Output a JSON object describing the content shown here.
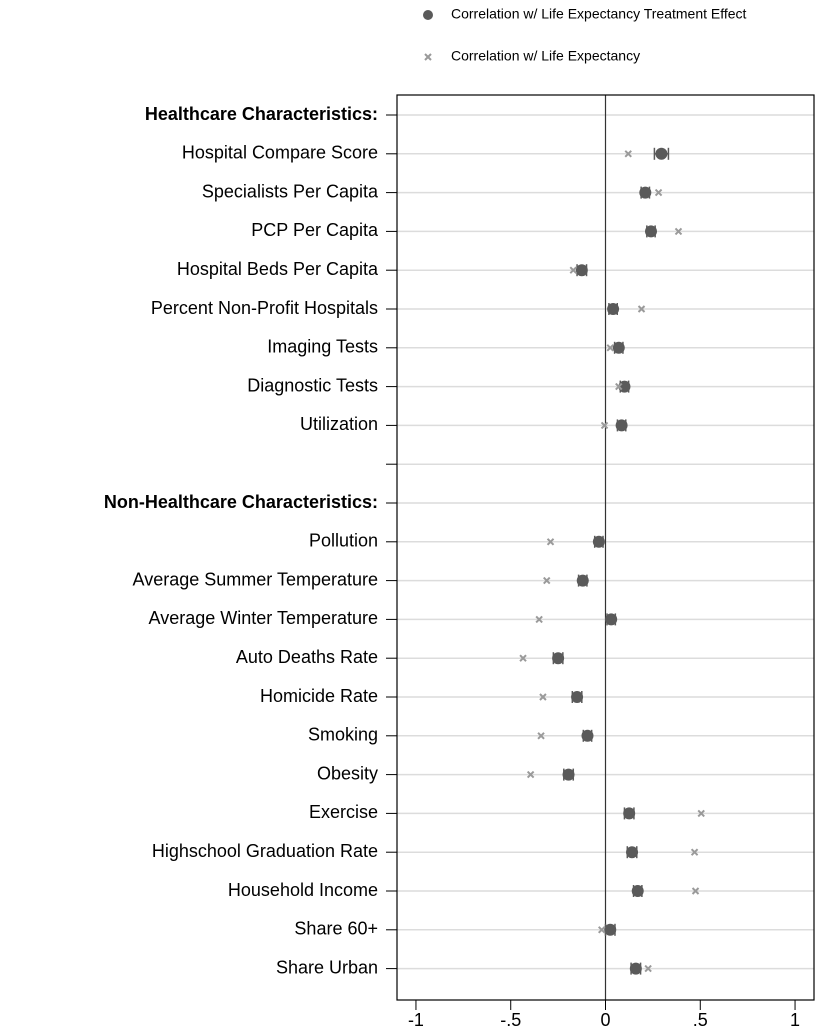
{
  "chart_data": {
    "type": "dot",
    "categories": [
      "Healthcare Characteristics:",
      "Hospital Compare Score",
      "Specialists Per Capita",
      "PCP Per Capita",
      "Hospital Beds Per Capita",
      "Percent Non-Profit Hospitals",
      "Imaging Tests",
      "Diagnostic Tests",
      "Utilization",
      null,
      "Non-Healthcare Characteristics:",
      "Pollution",
      "Average Summer Temperature",
      "Average Winter Temperature",
      "Auto Deaths Rate",
      "Homicide Rate",
      "Smoking",
      "Obesity",
      "Exercise",
      "Highschool Graduation Rate",
      "Household Income",
      "Share 60+",
      "Share Urban"
    ],
    "series": [
      {
        "name": "Correlation w/ Life Expectancy Treatment Effect",
        "color": "#5a5a5a",
        "marker": "circle",
        "values": [
          null,
          0.295,
          0.21,
          0.24,
          -0.125,
          0.04,
          0.07,
          0.1,
          0.085,
          null,
          null,
          -0.035,
          -0.12,
          0.03,
          -0.25,
          -0.15,
          -0.095,
          -0.195,
          0.125,
          0.14,
          0.17,
          0.025,
          0.16
        ],
        "errors": [
          null,
          0.037,
          0.022,
          0.022,
          0.025,
          0.022,
          0.022,
          0.022,
          0.022,
          null,
          null,
          0.022,
          0.022,
          0.022,
          0.025,
          0.025,
          0.022,
          0.025,
          0.025,
          0.025,
          0.022,
          0.025,
          0.025
        ]
      },
      {
        "name": "Correlation w/ Life Expectancy",
        "color": "#9a9a9a",
        "marker": "x",
        "values": [
          null,
          0.12,
          0.28,
          0.385,
          -0.17,
          0.19,
          0.025,
          0.07,
          -0.005,
          null,
          null,
          -0.29,
          -0.31,
          -0.35,
          -0.435,
          -0.33,
          -0.34,
          -0.395,
          0.505,
          0.47,
          0.475,
          -0.02,
          0.225
        ]
      }
    ],
    "xlim": [
      -1.1,
      1.1
    ],
    "xticks": [
      -1,
      {
        "value": -0.5,
        "label": "-.5"
      },
      0,
      {
        "value": 0.5,
        "label": ".5"
      },
      1
    ],
    "xline": 0,
    "grid": true,
    "legend": "top"
  }
}
